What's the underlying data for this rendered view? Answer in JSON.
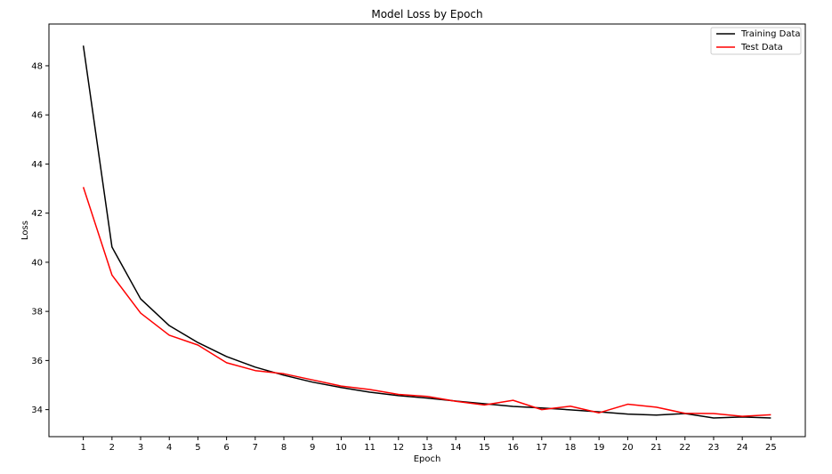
{
  "chart_data": {
    "type": "line",
    "title": "Model Loss by Epoch",
    "xlabel": "Epoch",
    "ylabel": "Loss",
    "x": [
      1,
      2,
      3,
      4,
      5,
      6,
      7,
      8,
      9,
      10,
      11,
      12,
      13,
      14,
      15,
      16,
      17,
      18,
      19,
      20,
      21,
      22,
      23,
      24,
      25
    ],
    "xlim": [
      -0.2,
      26.2
    ],
    "ylim": [
      32.9,
      49.7
    ],
    "yticks": [
      34,
      36,
      38,
      40,
      42,
      44,
      46,
      48
    ],
    "grid": false,
    "legend_position": "top-right",
    "series": [
      {
        "name": "Training Data",
        "color": "#000000",
        "values": [
          48.82,
          40.62,
          38.51,
          37.42,
          36.73,
          36.16,
          35.73,
          35.4,
          35.12,
          34.9,
          34.71,
          34.57,
          34.47,
          34.35,
          34.24,
          34.13,
          34.07,
          33.99,
          33.91,
          33.82,
          33.78,
          33.84,
          33.66,
          33.7,
          33.66
        ]
      },
      {
        "name": "Test Data",
        "color": "#ff0000",
        "values": [
          43.06,
          39.48,
          37.93,
          37.03,
          36.63,
          35.91,
          35.59,
          35.46,
          35.21,
          34.96,
          34.82,
          34.62,
          34.54,
          34.34,
          34.19,
          34.38,
          34.0,
          34.14,
          33.87,
          34.22,
          34.1,
          33.85,
          33.84,
          33.73,
          33.79
        ]
      }
    ]
  }
}
